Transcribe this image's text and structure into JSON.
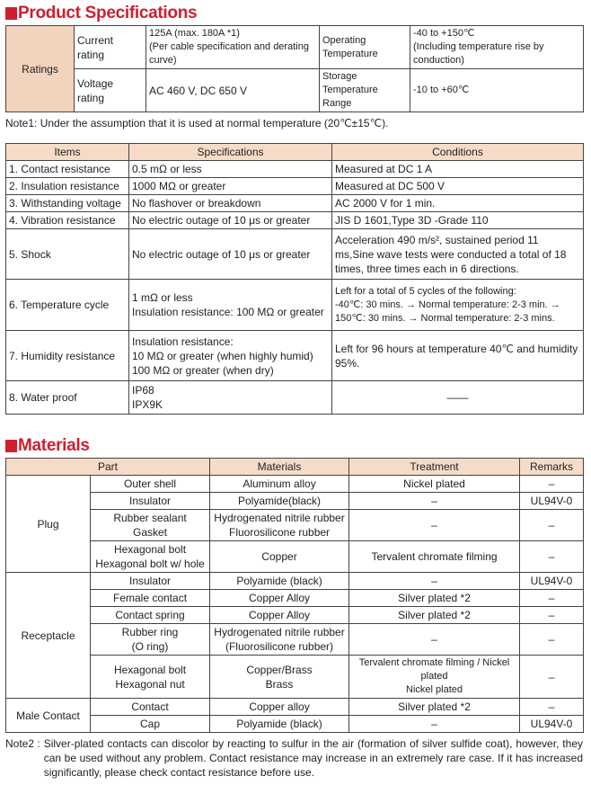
{
  "product_specs": {
    "title": "Product Specifications",
    "ratings": {
      "label": "Ratings",
      "current_label": "Current rating",
      "current_value": [
        "125A (max. 180A *1)",
        "(Per cable specification and derating curve)"
      ],
      "op_temp_label": [
        "Operating",
        "Temperature"
      ],
      "op_temp_value": [
        "-40 to +150℃",
        "(Including temperature rise by conduction)"
      ],
      "voltage_label": "Voltage rating",
      "voltage_value": "AC 460 V, DC 650 V",
      "storage_label": [
        "Storage",
        "Temperature Range"
      ],
      "storage_value": "-10 to +60℃"
    },
    "note1": "Note1: Under the assumption that it is used at normal temperature (20℃±15℃).",
    "table": {
      "headers": [
        "Items",
        "Specifications",
        "Conditions"
      ],
      "rows": [
        {
          "item": "1. Contact resistance",
          "spec": [
            "0.5 mΩ or less"
          ],
          "cond": [
            "Measured at DC 1 A"
          ]
        },
        {
          "item": "2. Insulation resistance",
          "spec": [
            "1000 MΩ or greater"
          ],
          "cond": [
            "Measured at DC 500 V"
          ]
        },
        {
          "item": "3. Withstanding voltage",
          "spec": [
            "No flashover or breakdown"
          ],
          "cond": [
            "AC 2000 V for 1 min."
          ]
        },
        {
          "item": "4. Vibration resistance",
          "spec": [
            "No electric outage of 10 μs or greater"
          ],
          "cond": [
            "JIS D 1601,Type 3D -Grade 110"
          ]
        },
        {
          "item": "5. Shock",
          "spec": [
            "No electric outage of 10 μs or greater"
          ],
          "cond": [
            "Acceleration 490 m/s², sustained period 11",
            "ms,Sine wave tests were conducted a total of 18",
            "times, three times each in 6 directions."
          ]
        },
        {
          "item": "6. Temperature cycle",
          "spec": [
            "1 mΩ or less",
            "Insulation resistance: 100 MΩ or greater"
          ],
          "cond": [
            "Left for a total of 5 cycles of the following:",
            "-40℃: 30 mins. → Normal temperature: 2-3 min. →",
            "150℃: 30 mins. → Normal temperature: 2-3 mins."
          ]
        },
        {
          "item": "7. Humidity resistance",
          "spec": [
            "Insulation resistance:",
            "10 MΩ or greater (when highly humid)",
            "100 MΩ or greater (when dry)"
          ],
          "cond": [
            "Left for 96 hours at temperature 40℃ and humidity",
            "95%."
          ]
        },
        {
          "item": "8. Water proof",
          "spec": [
            "IP68",
            "IPX9K"
          ],
          "cond": [
            "——"
          ]
        }
      ]
    }
  },
  "materials": {
    "title": "Materials",
    "headers": [
      "Part",
      "Materials",
      "Treatment",
      "Remarks"
    ],
    "groups": [
      {
        "name": "Plug",
        "rows": [
          {
            "part": [
              "Outer shell"
            ],
            "material": [
              "Aluminum alloy"
            ],
            "treatment": [
              "Nickel plated"
            ],
            "remarks": "–"
          },
          {
            "part": [
              "Insulator"
            ],
            "material": [
              "Polyamide(black)"
            ],
            "treatment": [
              "–"
            ],
            "remarks": "UL94V-0"
          },
          {
            "part": [
              "Rubber sealant",
              "Gasket"
            ],
            "material": [
              "Hydrogenated nitrile rubber",
              "Fluorosilicone rubber"
            ],
            "treatment": [
              "–"
            ],
            "remarks": "–"
          },
          {
            "part": [
              "Hexagonal bolt",
              "Hexagonal bolt w/ hole"
            ],
            "material": [
              "Copper"
            ],
            "treatment": [
              "Tervalent chromate filming"
            ],
            "remarks": "–"
          }
        ]
      },
      {
        "name": "Receptacle",
        "rows": [
          {
            "part": [
              "Insulator"
            ],
            "material": [
              "Polyamide (black)"
            ],
            "treatment": [
              "–"
            ],
            "remarks": "UL94V-0"
          },
          {
            "part": [
              "Female contact"
            ],
            "material": [
              "Copper Alloy"
            ],
            "treatment": [
              "Silver plated *2"
            ],
            "remarks": "–"
          },
          {
            "part": [
              "Contact spring"
            ],
            "material": [
              "Copper Alloy"
            ],
            "treatment": [
              "Silver plated *2"
            ],
            "remarks": "–"
          },
          {
            "part": [
              "Rubber ring",
              "(O ring)"
            ],
            "material": [
              "Hydrogenated nitrile rubber",
              "(Fluorosilicone rubber)"
            ],
            "treatment": [
              "–"
            ],
            "remarks": "–"
          },
          {
            "part": [
              "Hexagonal bolt",
              "Hexagonal nut"
            ],
            "material": [
              "Copper/Brass",
              "Brass"
            ],
            "treatment": [
              "Tervalent chromate filming / Nickel plated",
              "Nickel plated"
            ],
            "remarks": "–"
          }
        ]
      },
      {
        "name": "Male Contact",
        "rows": [
          {
            "part": [
              "Contact"
            ],
            "material": [
              "Copper alloy"
            ],
            "treatment": [
              "Silver plated *2"
            ],
            "remarks": "–"
          },
          {
            "part": [
              "Cap"
            ],
            "material": [
              "Polyamide (black)"
            ],
            "treatment": [
              "–"
            ],
            "remarks": "UL94V-0"
          }
        ]
      }
    ],
    "note2_label": "Note2 :",
    "note2": "Silver-plated contacts can discolor by reacting to sulfur in the air (formation of silver sulfide coat), however, they can be used without any problem.  Contact resistance may increase in an extremely rare case. If it has increased significantly, please check contact resistance before use."
  }
}
